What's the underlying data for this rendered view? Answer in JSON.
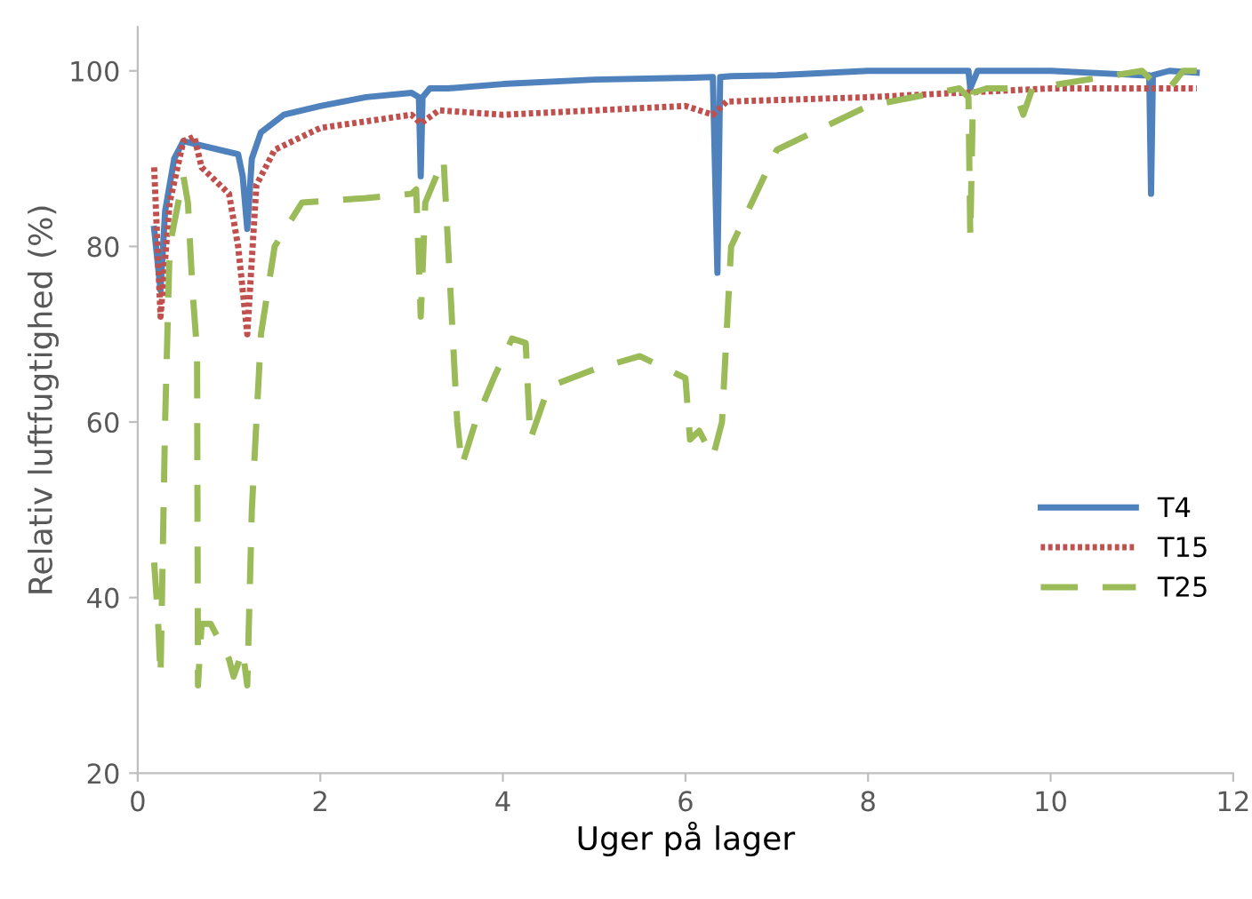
{
  "chart_data": {
    "type": "line",
    "title": "Uger på lager",
    "ylabel": "Relativ luftfugtighed (%)",
    "xlim": [
      0,
      12
    ],
    "xticks": [
      0,
      2,
      4,
      6,
      8,
      10,
      12
    ],
    "ylim": [
      20,
      105
    ],
    "yticks": [
      20,
      40,
      60,
      80,
      100
    ],
    "grid": false,
    "legend": "right",
    "marker": "none",
    "series": [
      {
        "name": "T4",
        "color": "#4f81bd",
        "line_style": "solid",
        "x": [
          0.18,
          0.25,
          0.3,
          0.4,
          0.5,
          0.7,
          1.1,
          1.15,
          1.2,
          1.25,
          1.35,
          1.6,
          2,
          2.5,
          3,
          3.08,
          3.1,
          3.12,
          3.2,
          3.4,
          4,
          5,
          6,
          6.3,
          6.35,
          6.38,
          6.5,
          7,
          8,
          9,
          9.1,
          9.12,
          9.2,
          10,
          11,
          11.08,
          11.1,
          11.12,
          11.3,
          11.6
        ],
        "values": [
          82,
          75,
          84,
          90,
          92,
          91.5,
          90.5,
          88,
          82,
          90,
          93,
          95,
          96,
          97,
          97.5,
          97,
          88,
          97,
          98,
          98,
          98.5,
          99,
          99.2,
          99.3,
          77,
          99.3,
          99.4,
          99.5,
          100,
          100,
          100,
          98,
          100,
          100,
          99.5,
          99.5,
          86,
          99.5,
          100,
          99.8
        ]
      },
      {
        "name": "T15",
        "color": "#c0504d",
        "line_style": "dotted",
        "x": [
          0.18,
          0.25,
          0.35,
          0.5,
          0.62,
          0.7,
          1.0,
          1.1,
          1.2,
          1.3,
          1.5,
          2,
          3,
          3.1,
          3.3,
          4,
          6,
          6.3,
          6.45,
          8,
          10,
          11.6
        ],
        "values": [
          89,
          72,
          85,
          92,
          92.5,
          89,
          86,
          80,
          70,
          87,
          91,
          93.5,
          95,
          94,
          95.5,
          95,
          96,
          95,
          96.5,
          97,
          98,
          98
        ]
      },
      {
        "name": "T25",
        "color": "#9bbb59",
        "line_style": "dashed",
        "x": [
          0.18,
          0.22,
          0.25,
          0.3,
          0.35,
          0.5,
          0.55,
          0.6,
          0.65,
          0.66,
          0.7,
          0.8,
          1.0,
          1.05,
          1.15,
          1.2,
          1.25,
          1.35,
          1.5,
          1.8,
          2.5,
          3.0,
          3.05,
          3.1,
          3.15,
          3.35,
          3.45,
          3.5,
          3.55,
          3.7,
          3.9,
          4.1,
          4.25,
          4.3,
          4.5,
          5,
          5.5,
          6,
          6.05,
          6.15,
          6.3,
          6.4,
          6.5,
          7,
          8,
          9,
          9.1,
          9.12,
          9.15,
          9.3,
          9.6,
          9.7,
          9.8,
          11,
          11.1,
          11.3,
          11.45,
          11.6
        ],
        "values": [
          44,
          38,
          31,
          60,
          80,
          88,
          85,
          75,
          68,
          30,
          37,
          37,
          33,
          31,
          34,
          30,
          50,
          70,
          80,
          85,
          85.5,
          86,
          86.5,
          72,
          85,
          90,
          70,
          60,
          55,
          60,
          65,
          69.5,
          69,
          58,
          64,
          66,
          67.5,
          65,
          58,
          59,
          56,
          60,
          80,
          91,
          96,
          98,
          97,
          81,
          97.5,
          98,
          98,
          95,
          98,
          100,
          99,
          98,
          100,
          100
        ]
      }
    ]
  }
}
